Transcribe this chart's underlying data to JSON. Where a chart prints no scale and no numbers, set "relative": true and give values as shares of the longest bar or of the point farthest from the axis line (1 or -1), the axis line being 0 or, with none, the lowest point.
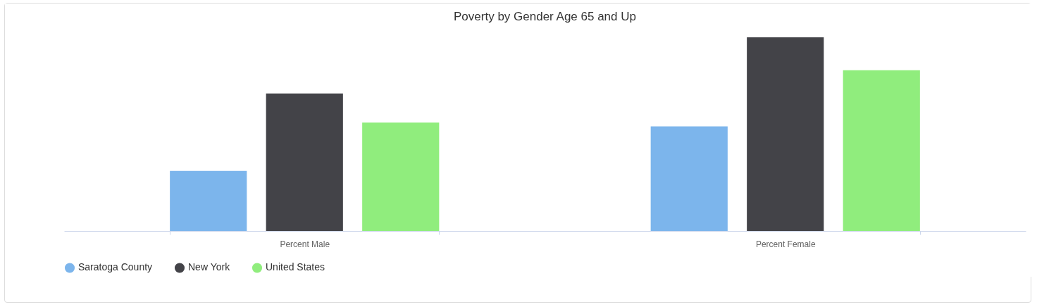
{
  "chart_data": {
    "type": "bar",
    "title": "Poverty by Gender Age 65 and Up",
    "categories": [
      "Percent Male",
      "Percent Female"
    ],
    "relative": true,
    "legend": "bottom",
    "series": [
      {
        "name": "Saratoga County",
        "color": "#7cb5ec",
        "values": [
          0.31,
          0.54
        ]
      },
      {
        "name": "New York",
        "color": "#434348",
        "values": [
          0.71,
          1
        ]
      },
      {
        "name": "United States",
        "color": "#90ed7d",
        "values": [
          0.56,
          0.83
        ]
      }
    ]
  }
}
